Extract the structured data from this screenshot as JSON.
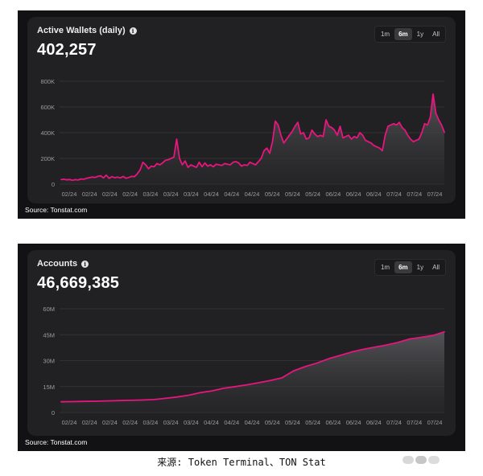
{
  "panels": [
    {
      "title": "Active Wallets (daily)",
      "value": "402,257",
      "ranges": [
        "1m",
        "6m",
        "1y",
        "All"
      ],
      "active_range": "6m",
      "source": "Source: Tonstat.com"
    },
    {
      "title": "Accounts",
      "value": "46,669,385",
      "ranges": [
        "1m",
        "6m",
        "1y",
        "All"
      ],
      "active_range": "6m",
      "source": "Source: Tonstat.com"
    }
  ],
  "caption": "来源: Token Terminal、TON Stat",
  "colors": {
    "line": "#e8157f",
    "area_top": "#5a5a5e",
    "area_bottom": "#2a2a2c",
    "grid": "#38383b",
    "tick": "#9c9c9c"
  },
  "chart_data": [
    {
      "type": "area",
      "title": "Active Wallets (daily)",
      "x_tick_labels": [
        "02/24",
        "02/24",
        "02/24",
        "02/24",
        "03/24",
        "03/24",
        "03/24",
        "04/24",
        "04/24",
        "04/24",
        "05/24",
        "05/24",
        "05/24",
        "06/24",
        "06/24",
        "06/24",
        "07/24",
        "07/24",
        "07/24"
      ],
      "y_tick_labels": [
        "0",
        "200K",
        "400K",
        "600K",
        "800K"
      ],
      "ylim": [
        0,
        800000
      ],
      "grid": true,
      "series": [
        {
          "values": [
            35000,
            38000,
            33000,
            36000,
            30000,
            35000,
            32000,
            40000,
            38000,
            45000,
            50000,
            55000,
            52000,
            60000,
            65000,
            48000,
            70000,
            45000,
            58000,
            50000,
            55000,
            48000,
            60000,
            45000,
            52000,
            60000,
            58000,
            80000,
            110000,
            170000,
            150000,
            120000,
            140000,
            135000,
            160000,
            150000,
            165000,
            185000,
            190000,
            200000,
            210000,
            350000,
            200000,
            150000,
            180000,
            130000,
            150000,
            140000,
            130000,
            170000,
            135000,
            165000,
            140000,
            150000,
            135000,
            155000,
            150000,
            145000,
            160000,
            155000,
            150000,
            170000,
            175000,
            165000,
            140000,
            150000,
            145000,
            170000,
            160000,
            150000,
            175000,
            200000,
            260000,
            280000,
            240000,
            330000,
            490000,
            460000,
            380000,
            320000,
            350000,
            380000,
            410000,
            450000,
            480000,
            390000,
            400000,
            350000,
            360000,
            420000,
            390000,
            370000,
            380000,
            370000,
            500000,
            450000,
            440000,
            420000,
            380000,
            450000,
            360000,
            370000,
            380000,
            350000,
            370000,
            360000,
            400000,
            380000,
            340000,
            330000,
            320000,
            300000,
            290000,
            280000,
            260000,
            380000,
            450000,
            460000,
            470000,
            460000,
            480000,
            440000,
            420000,
            380000,
            350000,
            330000,
            340000,
            350000,
            400000,
            470000,
            460000,
            520000,
            700000,
            550000,
            500000,
            460000,
            402257
          ]
        }
      ]
    },
    {
      "type": "area",
      "title": "Accounts",
      "x_tick_labels": [
        "02/24",
        "02/24",
        "02/24",
        "02/24",
        "03/24",
        "03/24",
        "03/24",
        "04/24",
        "04/24",
        "04/24",
        "05/24",
        "05/24",
        "05/24",
        "06/24",
        "06/24",
        "06/24",
        "07/24",
        "07/24",
        "07/24"
      ],
      "y_tick_labels": [
        "0",
        "15M",
        "30M",
        "45M",
        "60M"
      ],
      "ylim": [
        0,
        60000000
      ],
      "grid": true,
      "series": [
        {
          "values": [
            6200000,
            6300000,
            6400000,
            6500000,
            6700000,
            6900000,
            7000000,
            7200000,
            7500000,
            8200000,
            9000000,
            10000000,
            11500000,
            12500000,
            14000000,
            15000000,
            16000000,
            17200000,
            18500000,
            20000000,
            24000000,
            26500000,
            28500000,
            31000000,
            33000000,
            35000000,
            36500000,
            37800000,
            39000000,
            40500000,
            42500000,
            43500000,
            44500000,
            46669385
          ]
        }
      ]
    }
  ]
}
